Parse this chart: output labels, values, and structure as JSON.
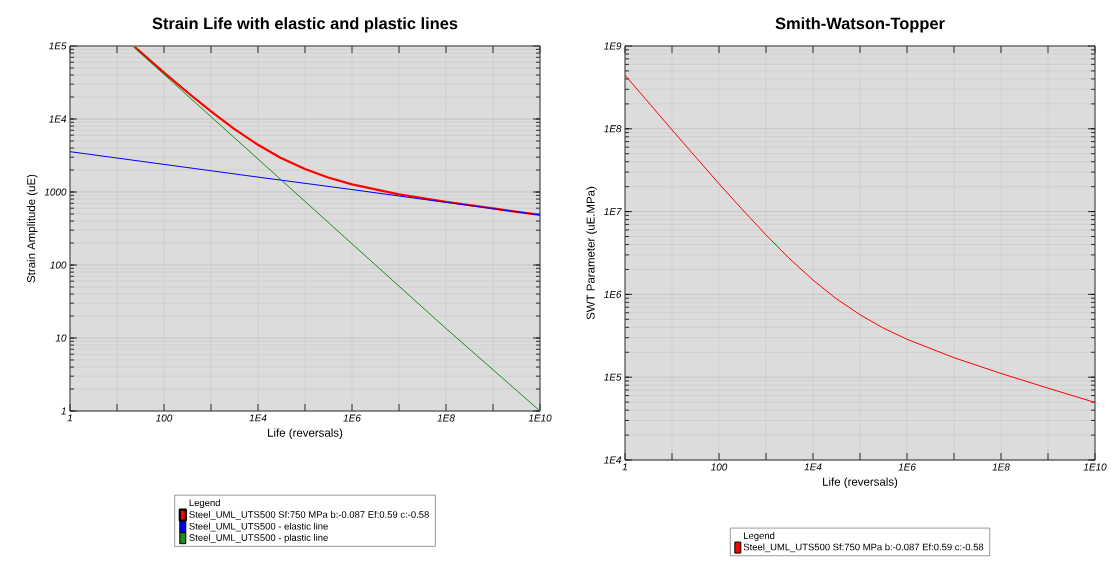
{
  "chart_data": [
    {
      "type": "line",
      "title": "Strain Life with elastic and plastic lines",
      "xlabel": "Life (reversals)",
      "ylabel": "Strain Amplitude (uE)",
      "log": "xy",
      "grid": true,
      "legend": "bottom",
      "legend_title": "Legend",
      "xlim": [
        1,
        10000000000.0
      ],
      "ylim": [
        1,
        100000.0
      ],
      "xticks": [
        {
          "value": 1,
          "label": "1"
        },
        {
          "value": 10,
          "label": null
        },
        {
          "value": 100,
          "label": "100"
        },
        {
          "value": 1000,
          "label": null
        },
        {
          "value": 10000.0,
          "label": "1E4"
        },
        {
          "value": 100000.0,
          "label": null
        },
        {
          "value": 1000000.0,
          "label": "1E6"
        },
        {
          "value": 10000000.0,
          "label": null
        },
        {
          "value": 100000000.0,
          "label": "1E8"
        },
        {
          "value": 1000000000.0,
          "label": null
        },
        {
          "value": 10000000000.0,
          "label": "1E10"
        }
      ],
      "yticks": [
        {
          "value": 1,
          "label": "1"
        },
        {
          "value": 10,
          "label": "10"
        },
        {
          "value": 100,
          "label": "100"
        },
        {
          "value": 1000,
          "label": "1000"
        },
        {
          "value": 10000.0,
          "label": "1E4"
        },
        {
          "value": 100000.0,
          "label": "1E5"
        }
      ],
      "series": [
        {
          "name": "Steel_UML_UTS500 Sf:750 MPa  b:-0.087 Ef:0.59 c:-0.58",
          "color": "#ff0000",
          "x": [
            24,
            100,
            300,
            1000,
            3000,
            10000.0,
            30000.0,
            100000.0,
            300000.0,
            1000000.0,
            10000000.0,
            100000000.0,
            1000000000.0,
            10000000000.0
          ],
          "values": [
            97000,
            43200,
            23800,
            12700,
            7450,
            4430,
            2950,
            2060,
            1590,
            1270,
            930,
            735,
            595,
            485
          ]
        },
        {
          "name": "Steel_UML_UTS500 - elastic line",
          "color": "#0000ff",
          "x": [
            1,
            100,
            10000.0,
            1000000.0,
            100000000.0,
            10000000000.0
          ],
          "values": [
            3570,
            2390,
            1600,
            1080,
            720,
            485
          ]
        },
        {
          "name": "Steel_UML_UTS500 - plastic line",
          "color": "#1a8c1a",
          "x": [
            22,
            100,
            10000.0,
            1000000.0,
            100000000.0,
            10000000000.0
          ],
          "values": [
            98000,
            40800,
            2830,
            195,
            13.5,
            1
          ]
        }
      ]
    },
    {
      "type": "line",
      "title": "Smith-Watson-Topper",
      "xlabel": "Life (reversals)",
      "ylabel": "SWT Parameter (uE.MPa)",
      "log": "xy",
      "grid": true,
      "legend": "bottom",
      "legend_title": "Legend",
      "xlim": [
        1,
        10000000000.0
      ],
      "ylim": [
        10000.0,
        1000000000.0
      ],
      "xticks": [
        {
          "value": 1,
          "label": "1"
        },
        {
          "value": 10,
          "label": null
        },
        {
          "value": 100,
          "label": "100"
        },
        {
          "value": 1000,
          "label": null
        },
        {
          "value": 10000.0,
          "label": "1E4"
        },
        {
          "value": 100000.0,
          "label": null
        },
        {
          "value": 1000000.0,
          "label": "1E6"
        },
        {
          "value": 10000000.0,
          "label": null
        },
        {
          "value": 100000000.0,
          "label": "1E8"
        },
        {
          "value": 1000000000.0,
          "label": null
        },
        {
          "value": 10000000000.0,
          "label": "1E10"
        }
      ],
      "yticks": [
        {
          "value": 10000.0,
          "label": "1E4"
        },
        {
          "value": 100000.0,
          "label": "1E5"
        },
        {
          "value": 1000000.0,
          "label": "1E6"
        },
        {
          "value": 10000000.0,
          "label": "1E7"
        },
        {
          "value": 100000000.0,
          "label": "1E8"
        },
        {
          "value": 1000000000.0,
          "label": "1E9"
        }
      ],
      "series": [
        {
          "name": "Steel_UML_UTS500 Sf:750 MPa  b:-0.087 Ef:0.59 c:-0.58",
          "color": "#ff0000",
          "x": [
            1,
            10,
            100,
            300,
            1000,
            3000,
            10000.0,
            30000.0,
            100000.0,
            300000.0,
            1000000.0,
            10000000.0,
            100000000.0,
            1000000000.0,
            10000000000.0
          ],
          "values": [
            445000000,
            97100000,
            21700000,
            10900000,
            5230000,
            2780000,
            1490000,
            902000,
            568000,
            397000,
            287000,
            172000,
            111000,
            73800,
            49500
          ]
        }
      ]
    }
  ]
}
